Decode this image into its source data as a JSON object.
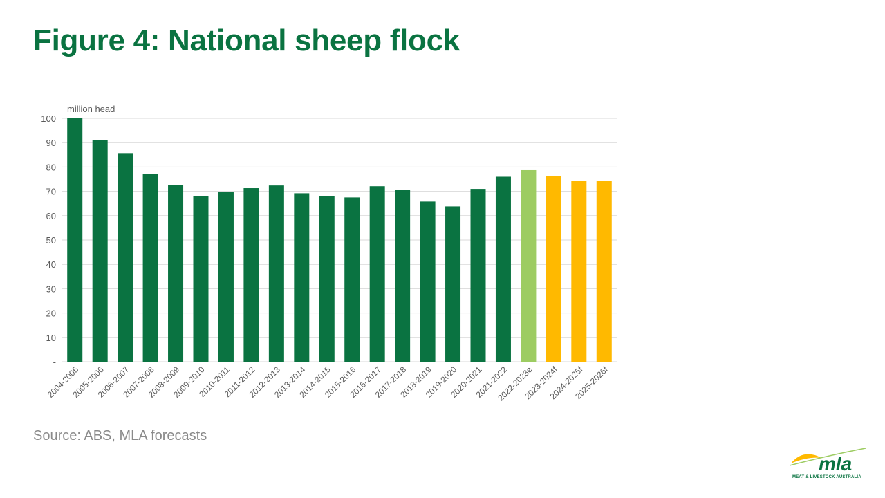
{
  "page": {
    "title": "Figure 4: National sheep flock",
    "source": "Source: ABS, MLA forecasts"
  },
  "logo": {
    "wordmark": "mla",
    "tagline": "MEAT & LIVESTOCK AUSTRALIA"
  },
  "colors": {
    "title": "#0a7341",
    "actual": "#0a7341",
    "estimate": "#9dcc62",
    "forecast": "#ffb900",
    "grid": "#d9d9d9",
    "axis_text": "#595959",
    "source_text": "#8a8a8a"
  },
  "chart_data": {
    "type": "bar",
    "unit_label": "million head",
    "ylim": [
      0,
      100
    ],
    "yticks": [
      0,
      10,
      20,
      30,
      40,
      50,
      60,
      70,
      80,
      90,
      100
    ],
    "ytick_labels": [
      "-",
      "10",
      "20",
      "30",
      "40",
      "50",
      "60",
      "70",
      "80",
      "90",
      "100"
    ],
    "grid": true,
    "categories": [
      "2004-2005",
      "2005-2006",
      "2006-2007",
      "2007-2008",
      "2008-2009",
      "2009-2010",
      "2010-2011",
      "2011-2012",
      "2012-2013",
      "2013-2014",
      "2014-2015",
      "2015-2016",
      "2016-2017",
      "2017-2018",
      "2018-2019",
      "2019-2020",
      "2020-2021",
      "2021-2022",
      "2022-2023e",
      "2023-2024f",
      "2024-2025f",
      "2025-2026f"
    ],
    "values": [
      100.1,
      91.0,
      85.7,
      77.0,
      72.7,
      68.1,
      69.8,
      71.3,
      72.4,
      69.2,
      68.1,
      67.5,
      72.1,
      70.7,
      65.8,
      63.8,
      71.0,
      76.0,
      78.7,
      76.3,
      74.2,
      74.4
    ],
    "status": [
      "actual",
      "actual",
      "actual",
      "actual",
      "actual",
      "actual",
      "actual",
      "actual",
      "actual",
      "actual",
      "actual",
      "actual",
      "actual",
      "actual",
      "actual",
      "actual",
      "actual",
      "actual",
      "estimate",
      "forecast",
      "forecast",
      "forecast"
    ]
  }
}
